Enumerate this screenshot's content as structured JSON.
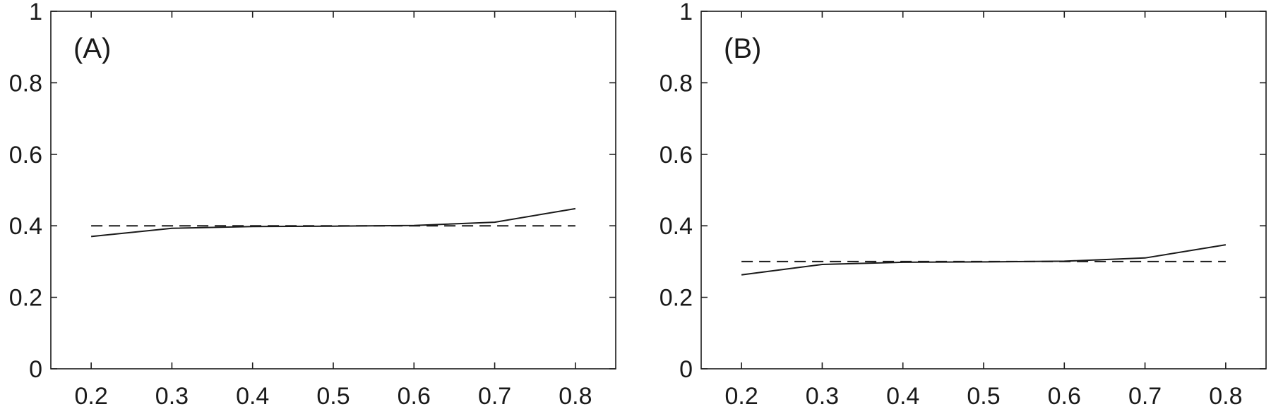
{
  "chart_data": [
    {
      "type": "line",
      "panel_label": "(A)",
      "xlim": [
        0.15,
        0.85
      ],
      "ylim": [
        0,
        1
      ],
      "x_ticks": [
        "0.2",
        "0.3",
        "0.4",
        "0.5",
        "0.6",
        "0.7",
        "0.8"
      ],
      "y_ticks": [
        "0",
        "0.2",
        "0.4",
        "0.6",
        "0.8",
        "1"
      ],
      "grid": false,
      "series": [
        {
          "style": "solid",
          "color": "#1a1a1a",
          "x": [
            0.2,
            0.3,
            0.4,
            0.5,
            0.6,
            0.7,
            0.8
          ],
          "y": [
            0.37,
            0.393,
            0.398,
            0.399,
            0.401,
            0.41,
            0.448
          ]
        },
        {
          "style": "dashed",
          "color": "#1a1a1a",
          "x": [
            0.2,
            0.8
          ],
          "y": [
            0.4,
            0.4
          ]
        }
      ]
    },
    {
      "type": "line",
      "panel_label": "(B)",
      "xlim": [
        0.15,
        0.85
      ],
      "ylim": [
        0,
        1
      ],
      "x_ticks": [
        "0.2",
        "0.3",
        "0.4",
        "0.5",
        "0.6",
        "0.7",
        "0.8"
      ],
      "y_ticks": [
        "0",
        "0.2",
        "0.4",
        "0.6",
        "0.8",
        "1"
      ],
      "grid": false,
      "series": [
        {
          "style": "solid",
          "color": "#1a1a1a",
          "x": [
            0.2,
            0.3,
            0.4,
            0.5,
            0.6,
            0.7,
            0.8
          ],
          "y": [
            0.263,
            0.292,
            0.298,
            0.299,
            0.301,
            0.31,
            0.347
          ]
        },
        {
          "style": "dashed",
          "color": "#1a1a1a",
          "x": [
            0.2,
            0.8
          ],
          "y": [
            0.3,
            0.3
          ]
        }
      ]
    }
  ]
}
